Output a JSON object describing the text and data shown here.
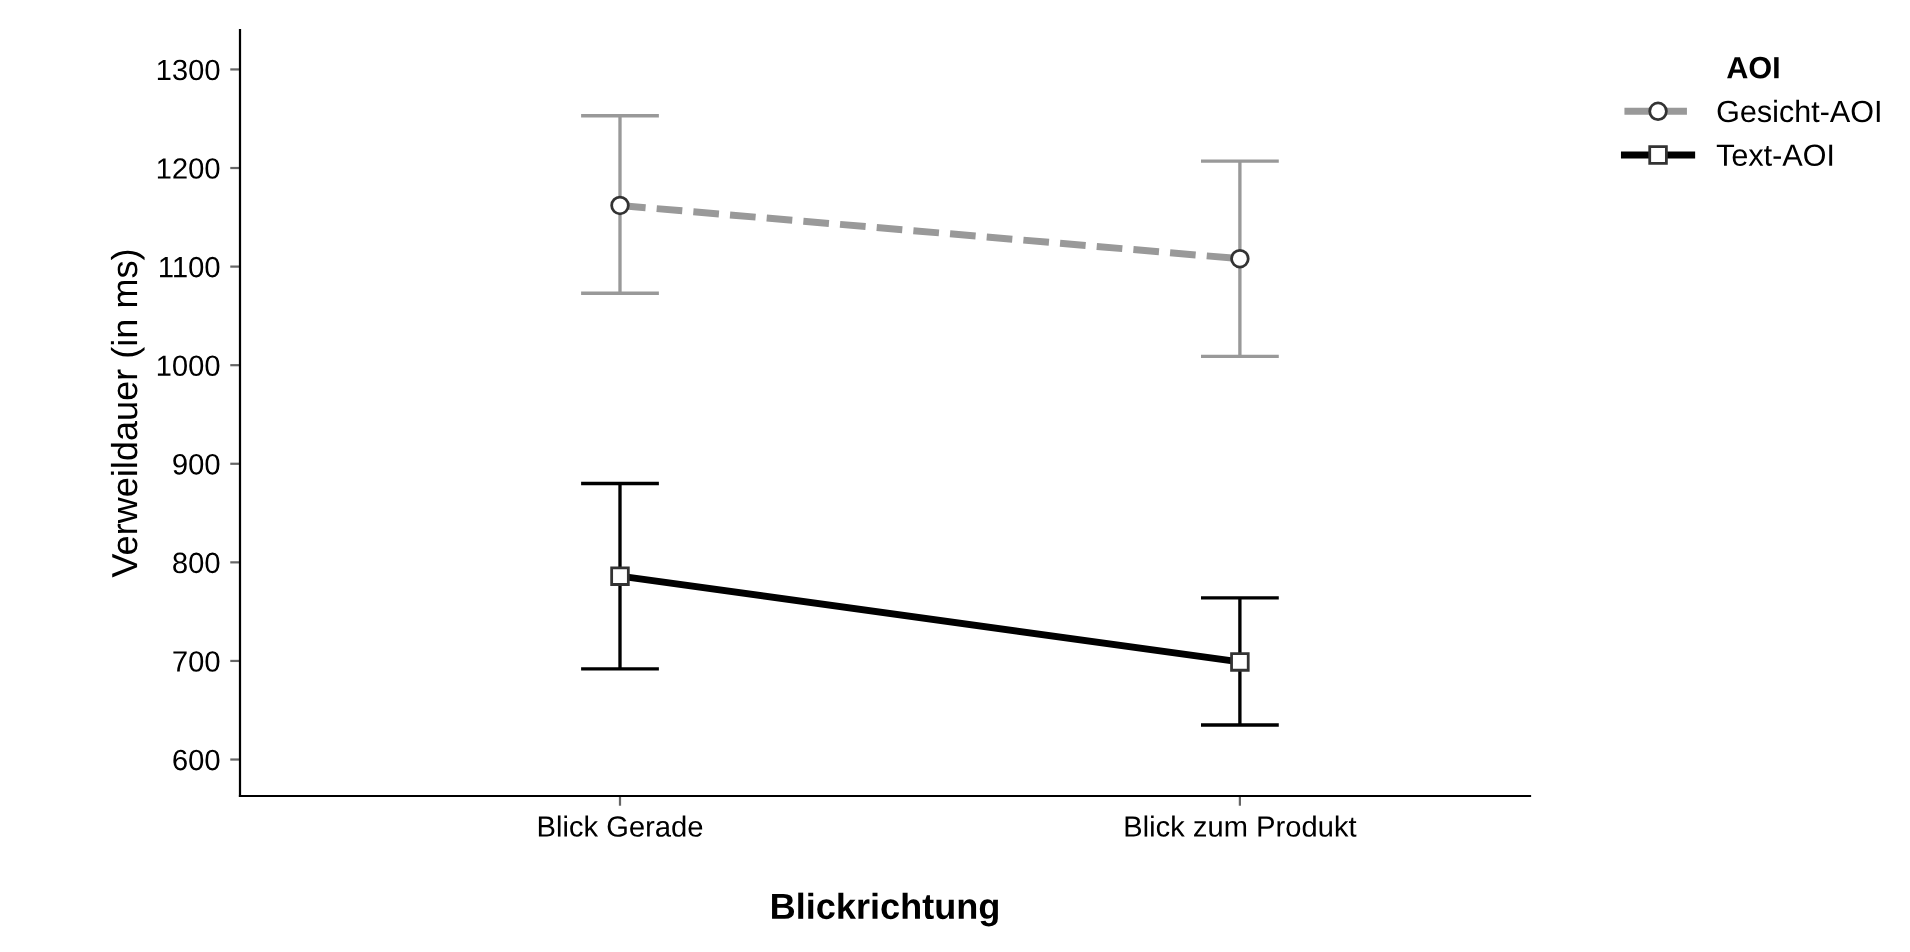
{
  "chart_data": {
    "type": "line",
    "xlabel": "Blickrichtung",
    "ylabel": "Verweildauer (in ms)",
    "legend_title": "AOI",
    "legend": "top right",
    "categories": [
      "Blick Gerade",
      "Blick zum Produkt"
    ],
    "series": [
      {
        "name": "Gesicht-AOI",
        "color": "#999999",
        "values": [
          1162,
          1108
        ],
        "errors": [
          [
            1073,
            1253
          ],
          [
            1009,
            1207
          ]
        ],
        "line_style": "dashed",
        "marker": "circle"
      },
      {
        "name": "Text-AOI",
        "color": "#000000",
        "values": [
          786,
          699
        ],
        "errors": [
          [
            692,
            880
          ],
          [
            635,
            764
          ]
        ],
        "line_style": "solid",
        "marker": "square"
      }
    ],
    "ylim": [
      563,
      1340
    ],
    "yticks": [
      600,
      700,
      800,
      900,
      1000,
      1100,
      1200,
      1300
    ],
    "grid": false
  }
}
